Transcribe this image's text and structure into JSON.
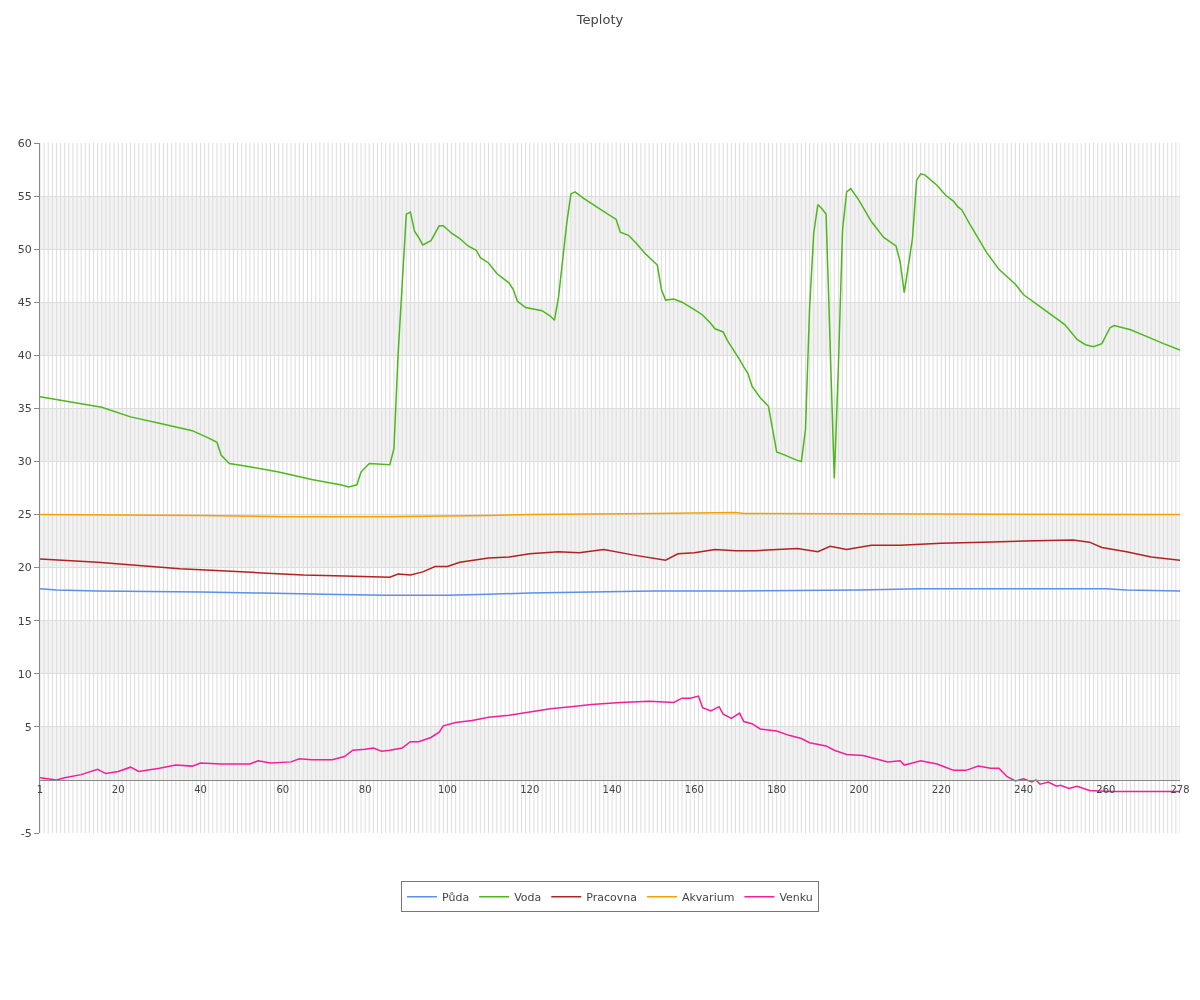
{
  "chart_data": {
    "type": "line",
    "title": "Teploty",
    "xlim": [
      1,
      278
    ],
    "xticks": [
      1,
      20,
      40,
      60,
      80,
      100,
      120,
      140,
      160,
      180,
      200,
      220,
      240,
      260,
      278
    ],
    "ylim": [
      -5,
      60
    ],
    "yticks": [
      -5,
      5,
      10,
      15,
      20,
      25,
      30,
      35,
      40,
      45,
      50,
      55,
      60
    ],
    "grid": true,
    "legend": "bottom",
    "line_style": "solid",
    "marker": "none",
    "bands": [
      {
        "axis": "y",
        "from": 0,
        "to": 5,
        "color": "#f2f2f2"
      },
      {
        "axis": "y",
        "from": 10,
        "to": 15,
        "color": "#f2f2f2"
      },
      {
        "axis": "y",
        "from": 20,
        "to": 25,
        "color": "#f2f2f2"
      },
      {
        "axis": "y",
        "from": 30,
        "to": 35,
        "color": "#f2f2f2"
      },
      {
        "axis": "y",
        "from": 40,
        "to": 45,
        "color": "#f2f2f2"
      },
      {
        "axis": "y",
        "from": 50,
        "to": 55,
        "color": "#f2f2f2"
      }
    ],
    "series": [
      {
        "name": "Půda",
        "color": "#5b8fe8",
        "x": [
          1,
          5,
          15,
          40,
          55,
          70,
          85,
          100,
          110,
          120,
          135,
          150,
          170,
          200,
          215,
          260,
          265,
          278
        ],
        "values": [
          18.0,
          17.9,
          17.8,
          17.7,
          17.6,
          17.5,
          17.4,
          17.4,
          17.5,
          17.6,
          17.7,
          17.8,
          17.8,
          17.9,
          18.0,
          18.0,
          17.9,
          17.8
        ]
      },
      {
        "name": "Voda",
        "color": "#4cb81c",
        "x": [
          1,
          16,
          23,
          30,
          38,
          42,
          44,
          45,
          47,
          52,
          59,
          67,
          74,
          76,
          78,
          79,
          81,
          86,
          87,
          88,
          90,
          91,
          92,
          93,
          94,
          96,
          98,
          99,
          101,
          103,
          105,
          107,
          108,
          110,
          112,
          114,
          115,
          116,
          117,
          119,
          123,
          125,
          126,
          127,
          129,
          130,
          131,
          133,
          137,
          141,
          142,
          144,
          146,
          148,
          151,
          152,
          153,
          155,
          157,
          160,
          162,
          164,
          165,
          167,
          168,
          171,
          172,
          173,
          174,
          176,
          178,
          180,
          182,
          185,
          186,
          187,
          188,
          189,
          190,
          191,
          192,
          194,
          195,
          196,
          197,
          198,
          200,
          203,
          206,
          209,
          210,
          211,
          213,
          214,
          215,
          216,
          219,
          221,
          223,
          224,
          225,
          227,
          231,
          234,
          238,
          240,
          245,
          250,
          253,
          255,
          257,
          259,
          261,
          262,
          266,
          271,
          274,
          278
        ],
        "values": [
          36.1,
          35.1,
          34.2,
          33.6,
          32.9,
          32.2,
          31.8,
          30.6,
          29.8,
          29.5,
          29.0,
          28.3,
          27.8,
          27.6,
          27.8,
          29.0,
          29.8,
          29.7,
          31.2,
          40,
          53.3,
          53.5,
          51.7,
          51.1,
          50.4,
          50.8,
          52.2,
          52.2,
          51.5,
          51.0,
          50.3,
          49.9,
          49.2,
          48.7,
          47.7,
          47.1,
          46.8,
          46.2,
          45.1,
          44.5,
          44.2,
          43.7,
          43.3,
          45.5,
          52.5,
          55.2,
          55.4,
          54.8,
          53.8,
          52.8,
          51.6,
          51.3,
          50.5,
          49.6,
          48.5,
          46.2,
          45.2,
          45.3,
          45.0,
          44.3,
          43.8,
          43.0,
          42.5,
          42.2,
          41.4,
          39.6,
          38.9,
          38.3,
          37.1,
          36.0,
          35.2,
          30.9,
          30.6,
          30.1,
          30.0,
          33,
          44.5,
          51.5,
          54.2,
          53.8,
          53.3,
          28.4,
          39,
          51.8,
          55.4,
          55.7,
          54.6,
          52.6,
          51.1,
          50.3,
          48.8,
          45.9,
          51.0,
          56.5,
          57.1,
          57.0,
          56.0,
          55.1,
          54.5,
          54.0,
          53.7,
          52.3,
          49.7,
          48.1,
          46.7,
          45.7,
          44.3,
          42.9,
          41.5,
          41.0,
          40.8,
          41.1,
          42.6,
          42.8,
          42.4,
          41.6,
          41.1,
          40.5
        ]
      },
      {
        "name": "Pracovna",
        "color": "#b22222",
        "x": [
          1,
          15,
          25,
          35,
          45,
          55,
          65,
          75,
          86,
          88,
          91,
          94,
          97,
          100,
          103,
          110,
          115,
          120,
          127,
          132,
          138,
          145,
          153,
          156,
          160,
          165,
          170,
          175,
          185,
          190,
          193,
          197,
          203,
          210,
          220,
          230,
          240,
          252,
          256,
          259,
          265,
          271,
          278
        ],
        "values": [
          20.8,
          20.5,
          20.2,
          19.9,
          19.7,
          19.5,
          19.3,
          19.2,
          19.1,
          19.4,
          19.3,
          19.6,
          20.1,
          20.1,
          20.5,
          20.9,
          21.0,
          21.3,
          21.5,
          21.4,
          21.7,
          21.2,
          20.7,
          21.3,
          21.4,
          21.7,
          21.6,
          21.6,
          21.8,
          21.5,
          22.0,
          21.7,
          22.1,
          22.1,
          22.3,
          22.4,
          22.5,
          22.6,
          22.4,
          21.9,
          21.5,
          21.0,
          20.7
        ]
      },
      {
        "name": "Akvarium",
        "color": "#f5a000",
        "x": [
          1,
          40,
          60,
          85,
          110,
          120,
          150,
          170,
          172,
          270,
          278
        ],
        "values": [
          25.0,
          24.9,
          24.8,
          24.8,
          24.9,
          25.0,
          25.1,
          25.2,
          25.1,
          25.0,
          25.0
        ]
      },
      {
        "name": "Venku",
        "color": "#f0209a",
        "x": [
          1,
          5,
          7,
          11,
          15,
          17,
          20,
          23,
          25,
          30,
          34,
          38,
          40,
          45,
          52,
          54,
          57,
          62,
          64,
          67,
          72,
          75,
          77,
          80,
          82,
          84,
          86,
          89,
          91,
          93,
          96,
          98,
          99,
          102,
          106,
          110,
          115,
          120,
          125,
          130,
          135,
          142,
          149,
          155,
          157,
          159,
          161,
          162,
          164,
          166,
          167,
          169,
          171,
          172,
          174,
          176,
          180,
          183,
          186,
          188,
          192,
          194,
          197,
          201,
          204,
          207,
          210,
          211,
          213,
          215,
          219,
          221,
          223,
          226,
          229,
          232,
          234,
          236,
          238,
          240,
          242,
          243,
          244,
          246,
          248,
          249,
          251,
          253,
          256,
          261,
          271,
          278
        ],
        "values": [
          0.2,
          0.0,
          0.2,
          0.5,
          1.0,
          0.6,
          0.8,
          1.2,
          0.8,
          1.1,
          1.4,
          1.3,
          1.6,
          1.5,
          1.5,
          1.8,
          1.6,
          1.7,
          2.0,
          1.9,
          1.9,
          2.2,
          2.8,
          2.9,
          3.0,
          2.7,
          2.8,
          3.0,
          3.6,
          3.6,
          4.0,
          4.5,
          5.1,
          5.4,
          5.6,
          5.9,
          6.1,
          6.4,
          6.7,
          6.9,
          7.1,
          7.3,
          7.4,
          7.3,
          7.7,
          7.7,
          7.9,
          6.8,
          6.5,
          6.9,
          6.2,
          5.8,
          6.3,
          5.5,
          5.3,
          4.8,
          4.6,
          4.2,
          3.9,
          3.5,
          3.2,
          2.8,
          2.4,
          2.3,
          2.0,
          1.7,
          1.8,
          1.4,
          1.6,
          1.8,
          1.5,
          1.2,
          0.9,
          0.9,
          1.3,
          1.1,
          1.1,
          0.3,
          -0.1,
          0.1,
          -0.2,
          0.0,
          -0.4,
          -0.2,
          -0.6,
          -0.5,
          -0.8,
          -0.6,
          -1.0,
          -1.1,
          -1.1,
          -1.1
        ]
      }
    ]
  }
}
